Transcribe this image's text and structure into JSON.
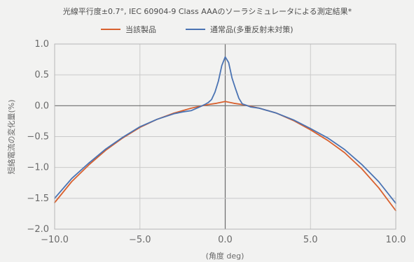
{
  "chart_data": {
    "type": "line",
    "title": "光線平行度±0.7°, IEC 60904-9 Class AAAのソーラシミュレータによる測定結果*",
    "xlabel": "(角度 deg)",
    "ylabel": "短絡電流の変化量(%)",
    "xlim": [
      -10,
      10
    ],
    "ylim": [
      -2,
      1
    ],
    "x_ticks": [
      -10,
      -5,
      0,
      5,
      10
    ],
    "x_tick_labels": [
      "−10.0",
      "−5.0",
      "0.0",
      "5.0",
      "10.0"
    ],
    "y_ticks": [
      1,
      0.5,
      0,
      -0.5,
      -1,
      -1.5,
      -2
    ],
    "y_tick_labels": [
      "1.0",
      "0.5",
      "0.0",
      "−0.5",
      "−1.0",
      "−1.5",
      "−2.0"
    ],
    "grid": true,
    "legend_position": "top-center",
    "series": [
      {
        "name": "当該製品",
        "color": "#d8602e",
        "x": [
          -10,
          -9,
          -8,
          -7,
          -6,
          -5,
          -4,
          -3,
          -2,
          -1,
          -0.5,
          0,
          0.5,
          1,
          2,
          3,
          4,
          5,
          6,
          7,
          8,
          9,
          10
        ],
        "y": [
          -1.57,
          -1.23,
          -0.96,
          -0.72,
          -0.52,
          -0.35,
          -0.22,
          -0.12,
          -0.04,
          0.02,
          0.04,
          0.07,
          0.04,
          0.02,
          -0.04,
          -0.12,
          -0.24,
          -0.39,
          -0.56,
          -0.76,
          -1.02,
          -1.33,
          -1.7
        ]
      },
      {
        "name": "通常品(多重反射未対策)",
        "color": "#4a73b3",
        "x": [
          -10,
          -9,
          -8,
          -7,
          -6,
          -5,
          -4,
          -3,
          -2.5,
          -2,
          -1.5,
          -1.2,
          -1,
          -0.8,
          -0.6,
          -0.4,
          -0.2,
          0,
          0.2,
          0.4,
          0.6,
          0.8,
          1,
          1.2,
          1.5,
          2,
          2.5,
          3,
          4,
          5,
          6,
          7,
          8,
          9,
          10
        ],
        "y": [
          -1.5,
          -1.18,
          -0.93,
          -0.7,
          -0.51,
          -0.34,
          -0.22,
          -0.13,
          -0.1,
          -0.08,
          -0.02,
          0.02,
          0.05,
          0.1,
          0.22,
          0.4,
          0.65,
          0.79,
          0.7,
          0.45,
          0.28,
          0.12,
          0.03,
          0.01,
          -0.02,
          -0.04,
          -0.08,
          -0.12,
          -0.23,
          -0.37,
          -0.52,
          -0.71,
          -0.95,
          -1.23,
          -1.58
        ]
      }
    ]
  }
}
